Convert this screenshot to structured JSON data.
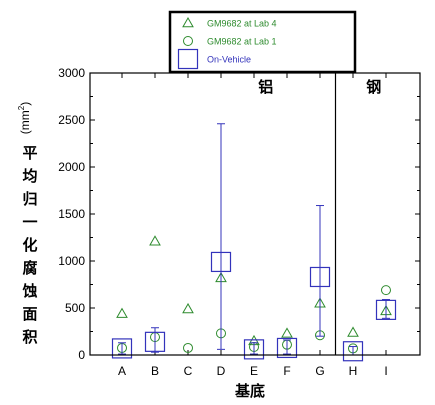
{
  "chart_data": {
    "type": "scatter",
    "categories": [
      "A",
      "B",
      "C",
      "D",
      "E",
      "F",
      "G",
      "H",
      "I"
    ],
    "xlabel": "基底",
    "ylabel_text": "平均归一化腐蚀面积",
    "ylabel_unit_base": "(mm",
    "ylabel_unit_exp": "2",
    "ylabel_unit_close": ")",
    "ylim": [
      0,
      3000
    ],
    "yticks": [
      0,
      500,
      1000,
      1500,
      2000,
      2500,
      3000
    ],
    "ytick_labels": [
      "0",
      "500",
      "1000",
      "1500",
      "2000",
      "2500",
      "3000"
    ],
    "regions": [
      {
        "label": "铝",
        "categories": [
          "A",
          "B",
          "C",
          "D",
          "E",
          "F",
          "G"
        ]
      },
      {
        "label": "钢",
        "categories": [
          "H",
          "I"
        ]
      }
    ],
    "legend": {
      "placement": "top-center"
    },
    "series": [
      {
        "name": "GM9682 at Lab 4",
        "marker": "triangle",
        "color": "#2e8b2e",
        "values": [
          440,
          1210,
          490,
          820,
          150,
          230,
          550,
          240,
          470
        ]
      },
      {
        "name": "GM9682 at Lab 1",
        "marker": "circle",
        "color": "#2e8b2e",
        "values": [
          75,
          190,
          75,
          230,
          85,
          110,
          210,
          70,
          690
        ]
      },
      {
        "name": "On-Vehicle",
        "marker": "square",
        "color": "#3333bb",
        "values": [
          70,
          140,
          null,
          990,
          60,
          75,
          830,
          40,
          480
        ],
        "error_high": [
          130,
          290,
          null,
          2460,
          130,
          160,
          1590,
          90,
          590
        ],
        "error_low": [
          10,
          30,
          null,
          60,
          10,
          10,
          200,
          0,
          390
        ]
      }
    ]
  }
}
